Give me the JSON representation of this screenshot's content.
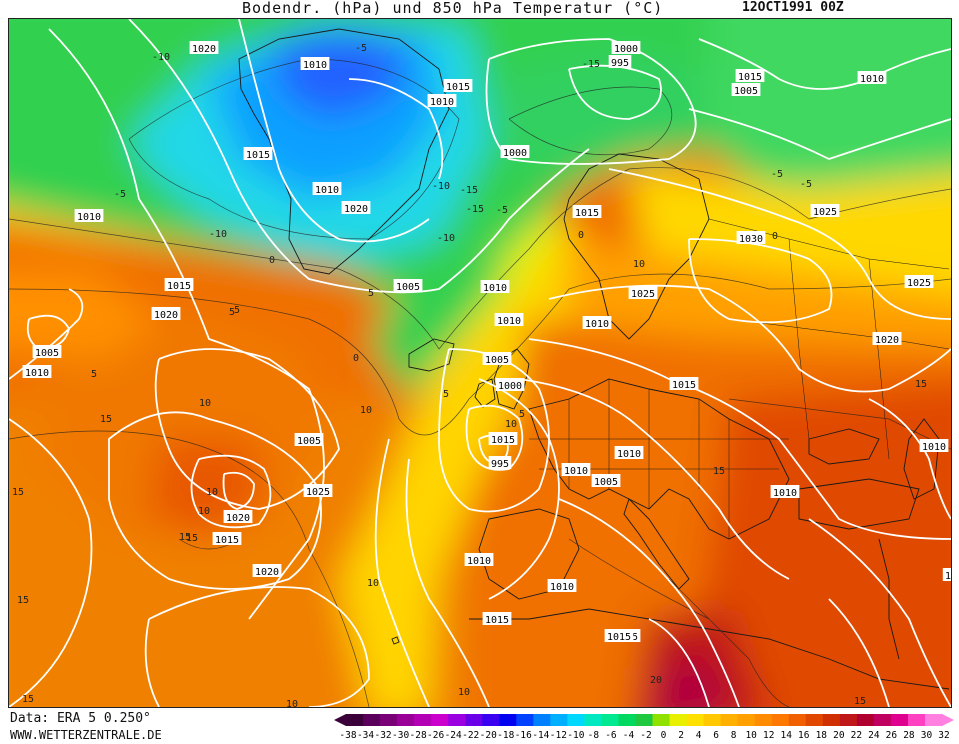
{
  "header": {
    "title": "Bodendr. (hPa) und 850 hPa Temperatur (°C)",
    "datetime": "12OCT1991 00Z"
  },
  "footer": {
    "data_source": "Data: ERA 5 0.250°",
    "website": "WWW.WETTERZENTRALE.DE"
  },
  "legend": {
    "values": [
      "-38",
      "-34",
      "-32",
      "-30",
      "-28",
      "-26",
      "-24",
      "-22",
      "-20",
      "-18",
      "-16",
      "-14",
      "-12",
      "-10",
      "-8",
      "-6",
      "-4",
      "-2",
      "0",
      "2",
      "4",
      "6",
      "8",
      "10",
      "12",
      "14",
      "16",
      "18",
      "20",
      "22",
      "24",
      "26",
      "28",
      "30",
      "32"
    ],
    "colors": [
      "#3a003a",
      "#5a005a",
      "#7a0078",
      "#9a0098",
      "#b400b4",
      "#cc00cc",
      "#9a00e0",
      "#6a00e8",
      "#3a00f0",
      "#0000f0",
      "#0040ff",
      "#0080ff",
      "#00b0ff",
      "#00d8ff",
      "#00e8c0",
      "#00e890",
      "#00d860",
      "#20c840",
      "#90e000",
      "#e8f000",
      "#ffe000",
      "#ffc800",
      "#ffb000",
      "#ffa000",
      "#ff8c00",
      "#ff7800",
      "#f06000",
      "#e04800",
      "#d03000",
      "#c01818",
      "#b00030",
      "#c00060",
      "#e00090",
      "#ff40c0",
      "#ff80e0"
    ]
  },
  "isobar_labels": [
    "1020",
    "1010",
    "1015",
    "1000",
    "995",
    "1015",
    "1010",
    "1010",
    "1000",
    "1015",
    "1010",
    "1020",
    "1010",
    "1015",
    "1005",
    "1010",
    "1015",
    "1005",
    "1010",
    "1025",
    "1030",
    "1025",
    "1015",
    "1020",
    "1005",
    "1010",
    "1020",
    "1025",
    "1005",
    "1010",
    "1000",
    "995",
    "1015",
    "1010",
    "1005",
    "1005",
    "1025",
    "1020",
    "1010",
    "1010",
    "1015",
    "1010",
    "1020",
    "1010",
    "1015",
    "1010",
    "1015",
    "1020",
    "1015",
    "10"
  ],
  "temperature_labels": [
    "-10",
    "-5",
    "-10",
    "-15",
    "-15",
    "-10",
    "-5",
    "-15",
    "-10",
    "-5",
    "0",
    "0",
    "5",
    "0",
    "5",
    "10",
    "5",
    "10",
    "15",
    "10",
    "15",
    "10",
    "15",
    "5",
    "15",
    "10",
    "15",
    "10",
    "20",
    "15",
    "15",
    "10",
    "10",
    "15",
    "5",
    "-5",
    "0",
    "5",
    "-5",
    "10",
    "15"
  ]
}
